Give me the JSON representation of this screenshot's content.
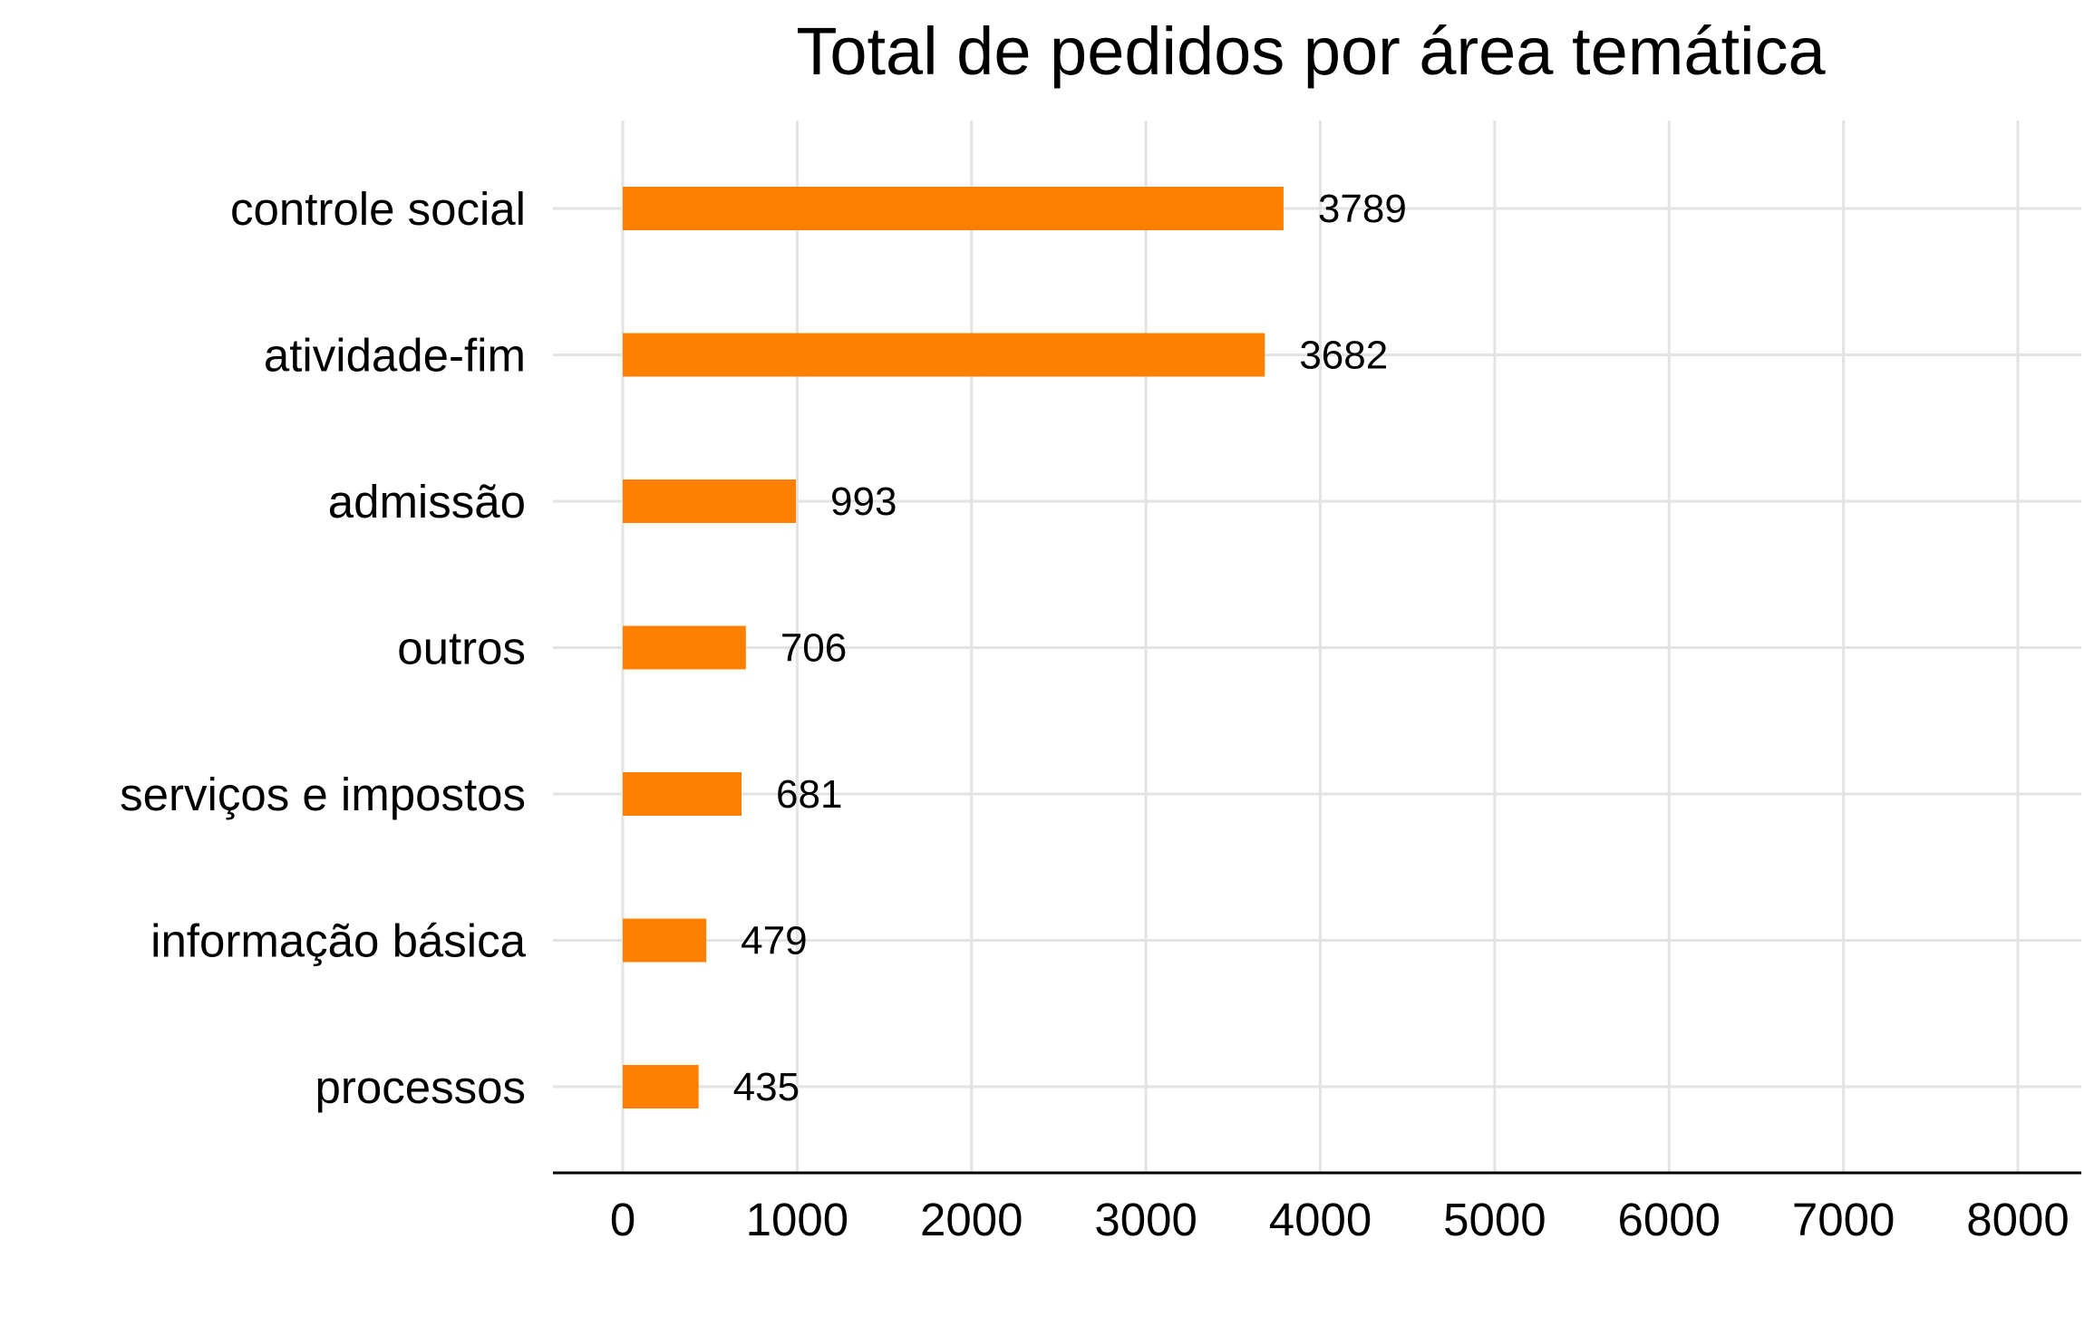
{
  "chart_data": {
    "type": "bar",
    "orientation": "horizontal",
    "title": "Total de pedidos por área temática",
    "xlabel": "",
    "ylabel": "",
    "categories": [
      "controle social",
      "atividade-fim",
      "admissão",
      "outros",
      "serviços e impostos",
      "informação básica",
      "processos"
    ],
    "values": [
      3789,
      3682,
      993,
      706,
      681,
      479,
      435
    ],
    "data_labels": [
      "3789",
      "3682",
      "993",
      "706",
      "681",
      "479",
      "435"
    ],
    "xlim": [
      0,
      8000
    ],
    "x_ticks": [
      0,
      1000,
      2000,
      3000,
      4000,
      5000,
      6000,
      7000,
      8000
    ],
    "x_tick_labels": [
      "0",
      "1000",
      "2000",
      "3000",
      "4000",
      "5000",
      "6000",
      "7000",
      "8000"
    ],
    "grid": true,
    "legend": "none",
    "bar_color": "#FF8000",
    "grid_color": "#E3E3E3",
    "axis_color": "#000000"
  }
}
